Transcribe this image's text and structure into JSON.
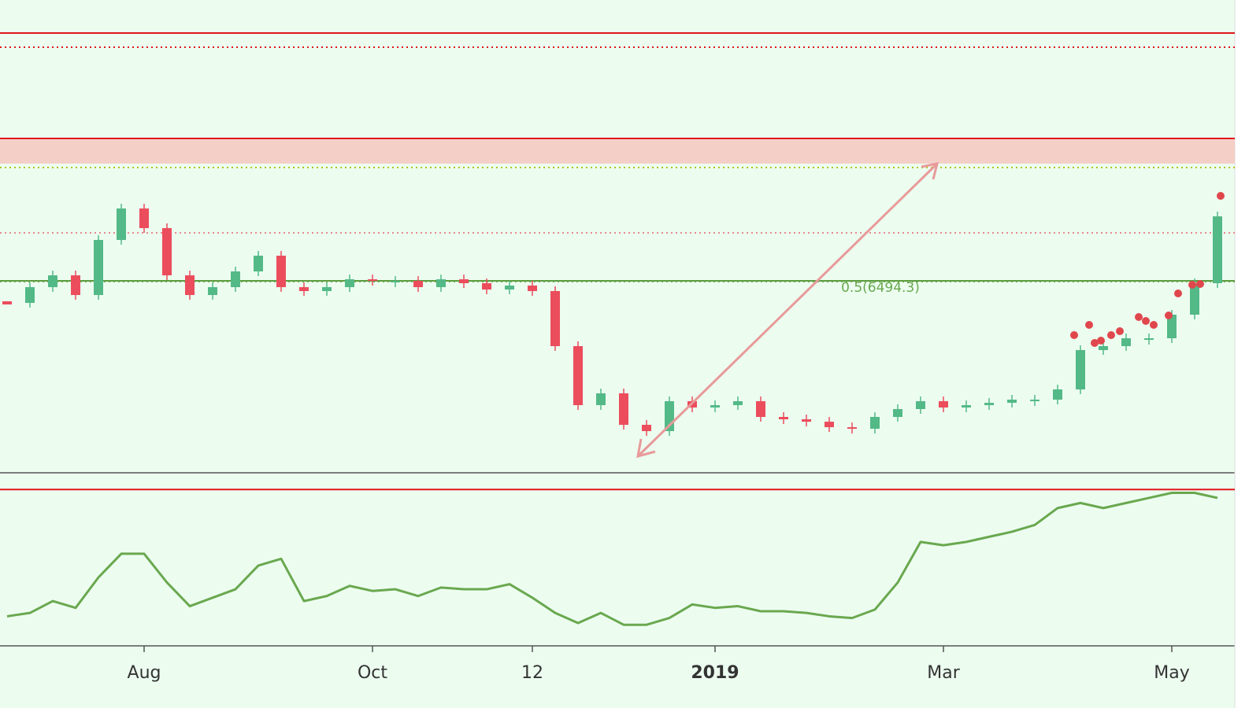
{
  "chart_data": [
    {
      "type": "candlestick",
      "categories": [
        null,
        null,
        null,
        null,
        null,
        null,
        "Aug",
        null,
        null,
        null,
        null,
        null,
        null,
        null,
        null,
        null,
        "Oct",
        null,
        null,
        null,
        null,
        null,
        null,
        "12",
        null,
        null,
        null,
        null,
        null,
        null,
        null,
        "2019",
        null,
        null,
        null,
        null,
        null,
        null,
        null,
        null,
        null,
        "Mar",
        null,
        null,
        null,
        null,
        null,
        null,
        null,
        null,
        null,
        "May",
        null,
        null
      ],
      "series": [
        {
          "values": [
            6043,
            6377,
            6628,
            6210,
            7379,
            8047,
            7630,
            6628,
            6210,
            6377,
            6711,
            7045,
            6377,
            6294,
            6377,
            6544,
            6511,
            6511,
            6377,
            6544,
            6461,
            6327,
            6411,
            6294,
            5125,
            3872,
            4123,
            3455,
            3321,
            3956,
            3822,
            3872,
            3956,
            3622,
            3572,
            3521,
            3404,
            3371,
            3622,
            3789,
            3956,
            3822,
            3872,
            3922,
            3989,
            3989,
            4206,
            5041,
            5125,
            5292,
            5292,
            5793,
            6461,
            7880
          ],
          "up_color": "#53b987",
          "down_color": "#eb4d5c"
        }
      ],
      "ylim": [
        2453,
        12473
      ],
      "levels": [
        {
          "value": 11771,
          "color": "#e0161a",
          "style": "solid"
        },
        {
          "value": 11471,
          "color": "#e0161a",
          "style": "dotted"
        },
        {
          "value": 9534,
          "color": "#e0161a",
          "style": "solid"
        },
        {
          "value": 8916,
          "color": "#b5c21a",
          "style": "dotted"
        },
        {
          "value": 7530,
          "color": "#e88a8a",
          "style": "dotted"
        },
        {
          "value": 6511,
          "color": "#5b9a3c",
          "style": "solid"
        },
        {
          "value": 6494.3,
          "color": "#6aa84f",
          "style": "dotted"
        }
      ],
      "zone": {
        "from": 9000,
        "to": 9534,
        "color": "#f4cfc8"
      },
      "fib_label": "0.5(6494.3)"
    },
    {
      "type": "line",
      "series": [
        {
          "values": [
            17,
            19,
            26,
            22,
            40,
            54,
            54,
            37,
            23,
            28,
            33,
            47,
            51,
            26,
            29,
            35,
            32,
            33,
            29,
            34,
            33,
            33,
            36,
            28,
            19,
            13,
            19,
            12,
            12,
            16,
            24,
            22,
            23,
            20,
            20,
            19,
            17,
            16,
            21,
            37,
            61,
            59,
            61,
            64,
            67,
            71,
            81,
            84,
            81,
            84,
            87,
            90,
            90,
            87
          ],
          "color": "#6aa84f"
        }
      ],
      "ylim": [
        0,
        100
      ],
      "levels": [
        {
          "value": 92,
          "color": "#e0161a",
          "style": "solid"
        }
      ]
    }
  ]
}
